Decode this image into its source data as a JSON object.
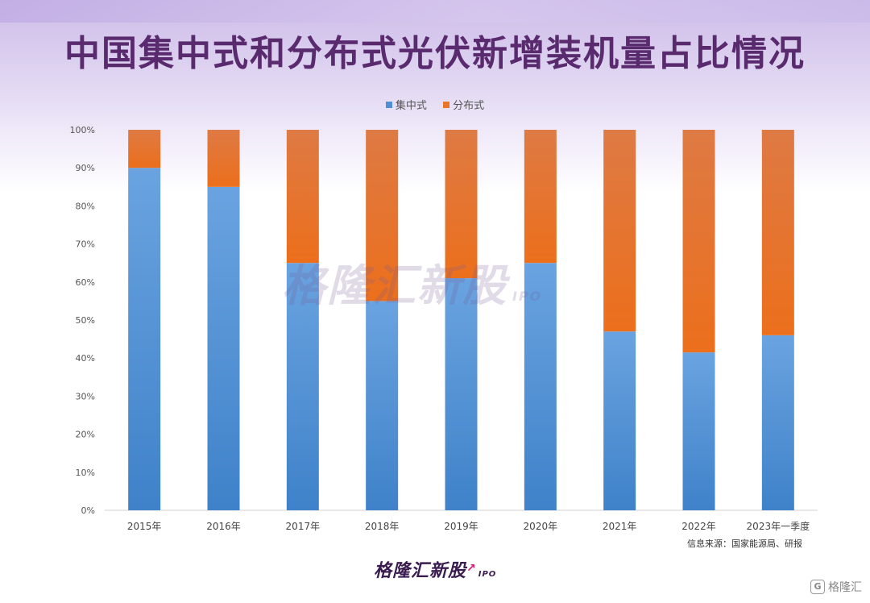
{
  "title": "中国集中式和分布式光伏新增装机量占比情况",
  "source": "信息来源：国家能源局、研报",
  "watermark_center": "格隆汇新股",
  "watermark_center_ipo": "IPO",
  "watermark_bottom": "格隆汇新股",
  "watermark_bottom_ipo": "IPO",
  "watermark_corner": "格隆汇",
  "watermark_corner_icon": "G",
  "colors": {
    "centralized": "#4f8fd6",
    "distributed": "#e87528",
    "title": "#5a2a6e"
  },
  "chart_data": {
    "type": "bar",
    "stacked": true,
    "percent": true,
    "categories": [
      "2015年",
      "2016年",
      "2017年",
      "2018年",
      "2019年",
      "2020年",
      "2021年",
      "2022年",
      "2023年一季度"
    ],
    "series": [
      {
        "name": "集中式",
        "values": [
          90,
          85,
          65,
          55,
          61,
          65,
          47,
          41.5,
          46
        ]
      },
      {
        "name": "分布式",
        "values": [
          10,
          15,
          35,
          45,
          39,
          35,
          53,
          58.5,
          54
        ]
      }
    ],
    "ylim": [
      0,
      100
    ],
    "yticks": [
      "0%",
      "10%",
      "20%",
      "30%",
      "40%",
      "50%",
      "60%",
      "70%",
      "80%",
      "90%",
      "100%"
    ],
    "legend_position": "top-center",
    "grid": false
  }
}
